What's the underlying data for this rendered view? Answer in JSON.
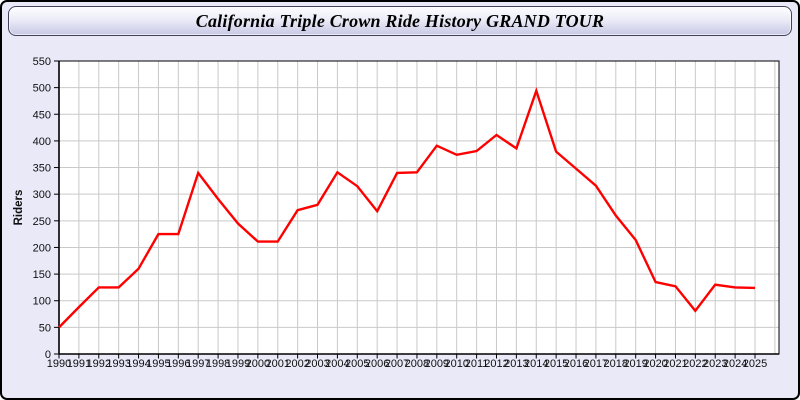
{
  "window": {
    "title": "California Triple Crown Ride History GRAND TOUR"
  },
  "colors": {
    "frame_background": "#e9e9f8",
    "titlebar_top": "#fdfdff",
    "titlebar_bottom": "#c7c7e5",
    "plot_background": "#ffffff",
    "gridline": "#c9c9c9",
    "axis": "#000000",
    "series_line": "#ff0000",
    "text": "#101010"
  },
  "chart_data": {
    "type": "line",
    "title": "California Triple Crown Ride History GRAND TOUR",
    "xlabel": "",
    "ylabel": "Riders",
    "grid": true,
    "legend": "none",
    "ylim": [
      0,
      550
    ],
    "ytick_step": 50,
    "x": [
      1990,
      1991,
      1992,
      1993,
      1994,
      1995,
      1996,
      1997,
      1998,
      1999,
      2000,
      2001,
      2002,
      2003,
      2004,
      2005,
      2006,
      2007,
      2008,
      2009,
      2010,
      2011,
      2012,
      2013,
      2014,
      2015,
      2016,
      2017,
      2018,
      2019,
      2020,
      2021,
      2022,
      2023,
      2024,
      2025
    ],
    "series": [
      {
        "name": "Riders",
        "color": "#ff0000",
        "values": [
          50,
          88,
          125,
          125,
          160,
          225,
          225,
          340,
          291,
          245,
          211,
          211,
          270,
          280,
          341,
          315,
          268,
          340,
          341,
          391,
          374,
          381,
          411,
          386,
          494,
          380,
          348,
          316,
          260,
          214,
          135,
          127,
          81,
          130,
          125,
          124
        ]
      }
    ]
  }
}
